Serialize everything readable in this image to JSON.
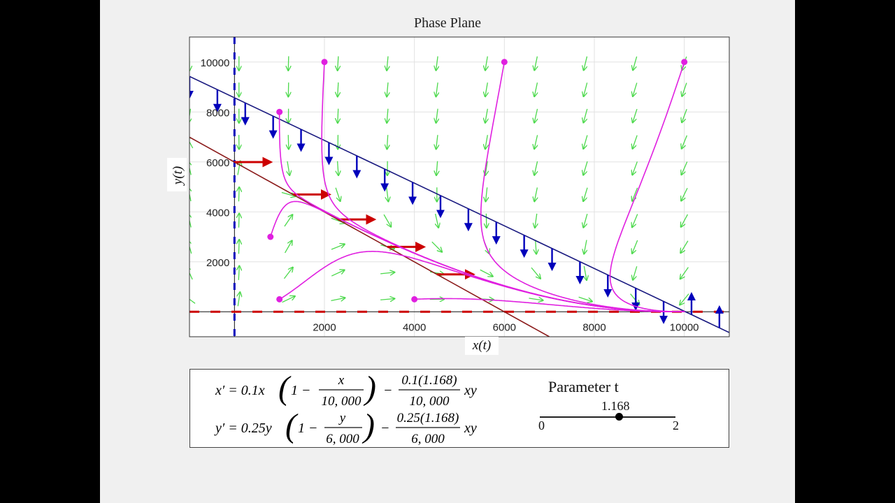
{
  "chart_data": {
    "type": "phase-plane",
    "title": "Phase Plane",
    "xlabel": "x(t)",
    "ylabel": "y(t)",
    "xlim": [
      -1000,
      11000
    ],
    "ylim": [
      -1000,
      11000
    ],
    "xticks": [
      2000,
      4000,
      6000,
      8000,
      10000
    ],
    "yticks": [
      2000,
      4000,
      6000,
      8000,
      10000
    ],
    "xtick_labels": [
      "2000",
      "4000",
      "6000",
      "8000",
      "10000"
    ],
    "ytick_labels": [
      "2000",
      "4000",
      "6000",
      "8000",
      "10000"
    ],
    "grid": true,
    "parameters": {
      "r1": 0.1,
      "K1": 10000,
      "r2": 0.25,
      "K2": 6000,
      "t": 1.168
    },
    "nullclines": [
      {
        "name": "x-nullcline",
        "color": "#8b1a1a",
        "points": [
          [
            -1000,
            6992
          ],
          [
            7000,
            -1000
          ]
        ]
      },
      {
        "name": "y-nullcline",
        "color": "#1a1a80",
        "points": [
          [
            -1000,
            9423
          ],
          [
            11000,
            -833
          ]
        ]
      }
    ],
    "equilibria": [
      [
        0,
        0
      ],
      [
        10000,
        0
      ],
      [
        0,
        6000
      ]
    ],
    "initial_points": [
      [
        1000,
        8000
      ],
      [
        2000,
        10000
      ],
      [
        6000,
        10000
      ],
      [
        10000,
        10000
      ],
      [
        800,
        3000
      ],
      [
        1000,
        500
      ],
      [
        4000,
        500
      ]
    ],
    "trajectory_color": "#e020e0",
    "vector_field_color": "#4cd94c",
    "x_arrow_color": "#cc0000",
    "y_arrow_color": "#0000bb"
  },
  "equations": {
    "x_prime": {
      "lhs": "x′ = 0.1x",
      "one": "1 −",
      "frac1_num": "x",
      "frac1_den": "10, 000",
      "minus": "−",
      "frac2_num": "0.1(1.168)",
      "frac2_den": "10, 000",
      "tail": "xy"
    },
    "y_prime": {
      "lhs": "y′ = 0.25y",
      "one": "1 −",
      "frac1_num": "y",
      "frac1_den": "6, 000",
      "minus": "−",
      "frac2_num": "0.25(1.168)",
      "frac2_den": "6, 000",
      "tail": "xy"
    }
  },
  "slider": {
    "title": "Parameter t",
    "value": 1.168,
    "value_label": "1.168",
    "min": 0,
    "max": 2,
    "min_label": "0",
    "max_label": "2"
  }
}
